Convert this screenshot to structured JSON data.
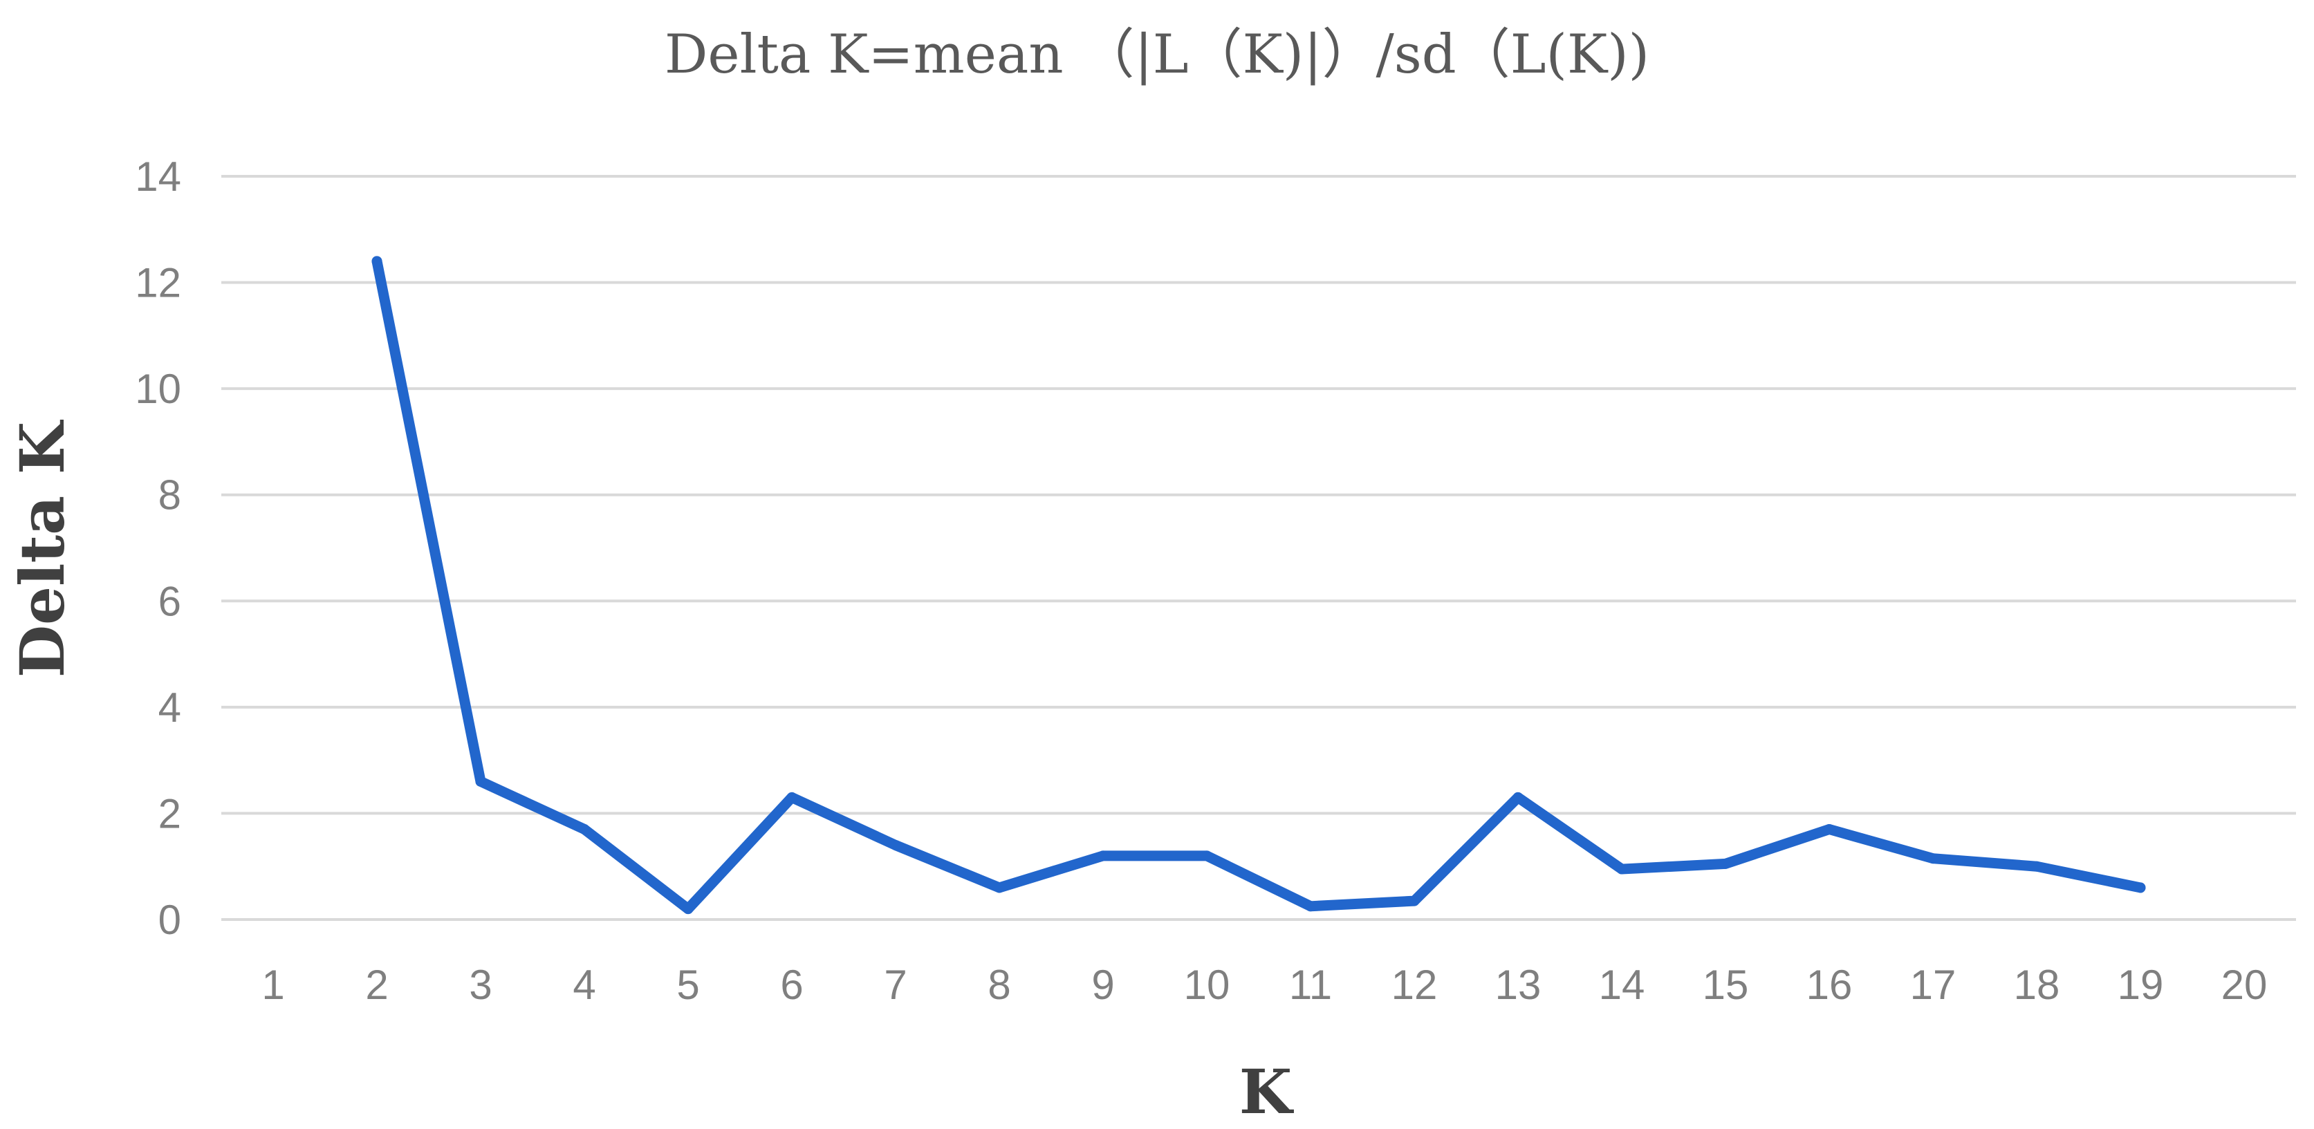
{
  "chart_data": {
    "type": "line",
    "title": "Delta  K=mean  （|L（K)|）/sd（L(K))",
    "xlabel": "K",
    "ylabel": "Delta K",
    "categories": [
      "1",
      "2",
      "3",
      "4",
      "5",
      "6",
      "7",
      "8",
      "9",
      "10",
      "11",
      "12",
      "13",
      "14",
      "15",
      "16",
      "17",
      "18",
      "19",
      "20"
    ],
    "series": [
      {
        "values": [
          null,
          12.4,
          2.6,
          1.7,
          0.2,
          2.3,
          1.4,
          0.6,
          1.2,
          1.2,
          0.25,
          0.35,
          2.3,
          0.95,
          1.05,
          1.7,
          1.15,
          1.0,
          0.6,
          null
        ]
      }
    ],
    "ylim": [
      0,
      14
    ],
    "yticks": [
      0,
      2,
      4,
      6,
      8,
      10,
      12,
      14
    ],
    "grid": true,
    "legend": "none",
    "line_color": "#2266cc"
  }
}
